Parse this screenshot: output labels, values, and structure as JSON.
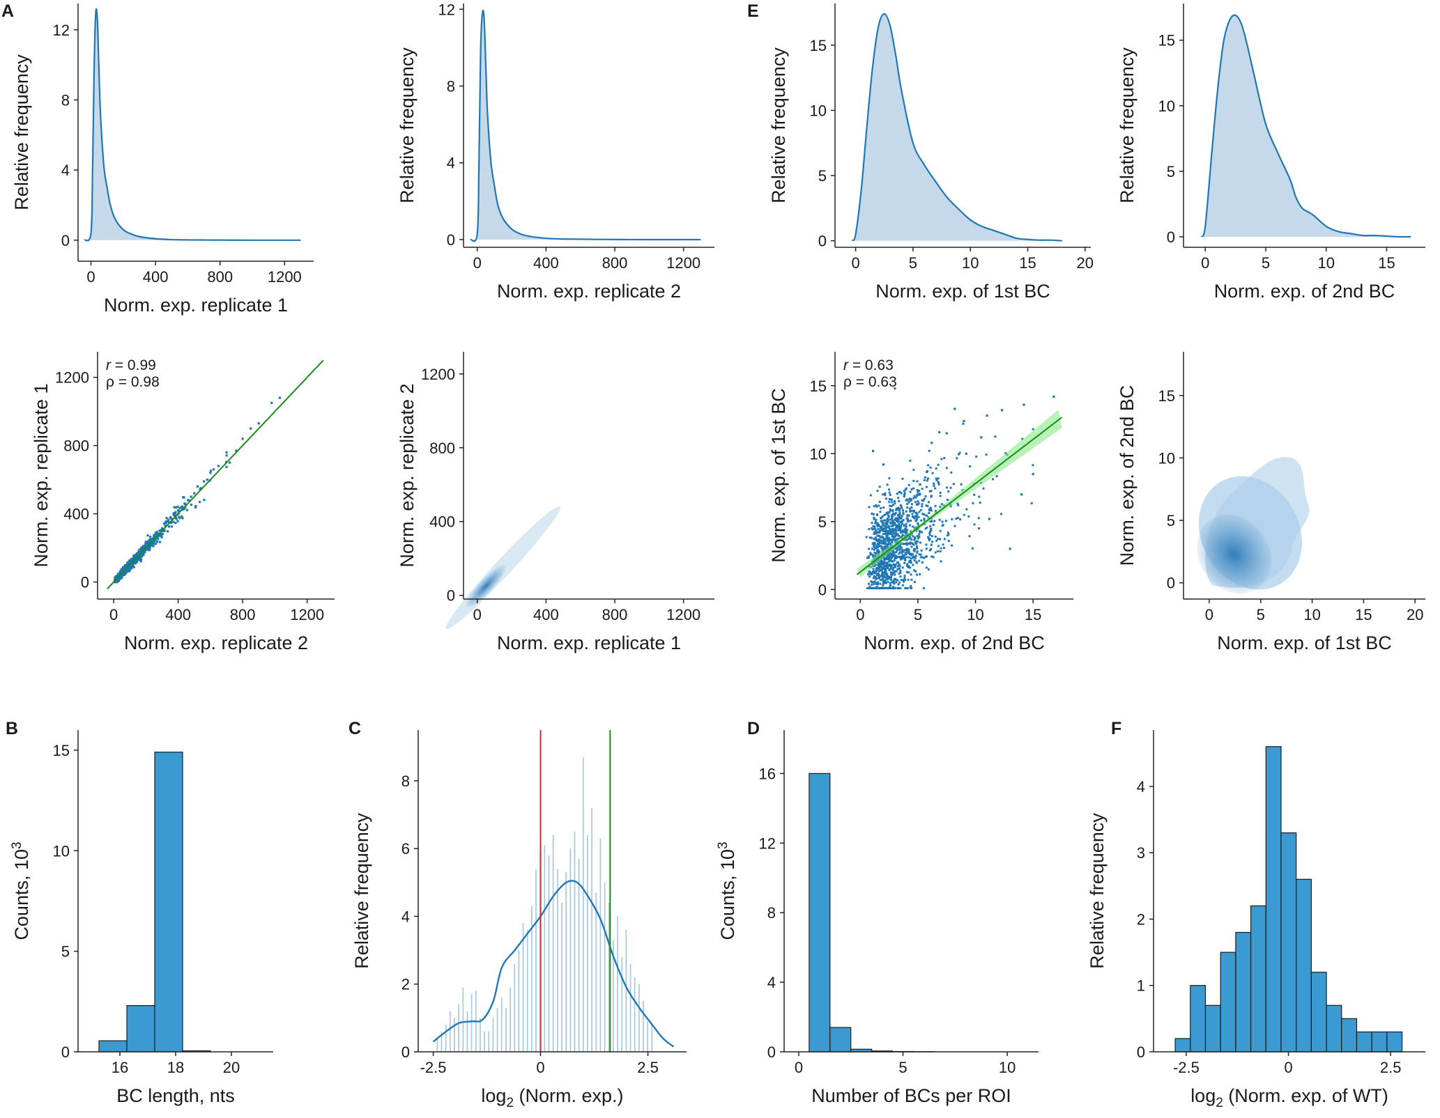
{
  "colors": {
    "blue": "#1f77b4",
    "fill": "#c6d9ea",
    "bar": "#3a9ad1",
    "green": "#1a8a1a",
    "red": "#d62728"
  },
  "panels": {
    "A": "A",
    "B": "B",
    "C": "C",
    "D": "D",
    "E": "E",
    "F": "F"
  },
  "chart_data": [
    {
      "id": "a1",
      "type": "area",
      "title": "",
      "xlabel": "Norm. exp. replicate 1",
      "ylabel": "Relative frequency",
      "xlim": [
        -80,
        1380
      ],
      "ylim": [
        -1.2,
        13.5
      ],
      "xticks": [
        0,
        400,
        800,
        1200
      ],
      "yticks": [
        0,
        4,
        8,
        12
      ],
      "x": [
        -40,
        0,
        10,
        20,
        30,
        40,
        50,
        60,
        80,
        100,
        120,
        150,
        200,
        250,
        300,
        400,
        500,
        700,
        1000,
        1300
      ],
      "y": [
        0,
        0.4,
        4,
        10,
        13,
        12.5,
        9.5,
        7,
        4.2,
        3,
        2,
        1.2,
        0.6,
        0.35,
        0.2,
        0.08,
        0.03,
        0.01,
        0,
        0
      ]
    },
    {
      "id": "a2",
      "type": "area",
      "title": "",
      "xlabel": "Norm. exp. replicate 2",
      "ylabel": "Relative frequency",
      "xlim": [
        -80,
        1380
      ],
      "ylim": [
        -0.4,
        12.3
      ],
      "xticks": [
        0,
        400,
        800,
        1200
      ],
      "yticks": [
        0,
        4,
        8,
        12
      ],
      "x": [
        -40,
        0,
        10,
        20,
        30,
        40,
        50,
        60,
        80,
        100,
        120,
        150,
        200,
        250,
        300,
        400,
        500,
        700,
        1000,
        1300
      ],
      "y": [
        0,
        0.3,
        4,
        10,
        11.8,
        11.5,
        9,
        6.5,
        4,
        2.8,
        1.8,
        1.1,
        0.55,
        0.3,
        0.18,
        0.07,
        0.03,
        0.01,
        0,
        0
      ]
    },
    {
      "id": "e1",
      "type": "area",
      "title": "",
      "xlabel": "Norm. exp. of 1st BC",
      "ylabel": "Relative frequency",
      "xlim": [
        -1.8,
        20.5
      ],
      "ylim": [
        -0.5,
        18.2
      ],
      "xticks": [
        0,
        5,
        10,
        15,
        20
      ],
      "yticks": [
        0,
        5,
        10,
        15
      ],
      "x": [
        -0.3,
        0,
        0.5,
        1,
        1.5,
        2,
        2.5,
        3,
        3.5,
        4,
        5,
        6,
        7,
        8,
        9,
        10,
        11,
        12,
        13,
        14,
        15,
        16,
        17,
        18
      ],
      "y": [
        0,
        0.5,
        4,
        9,
        13.5,
        16.5,
        17.4,
        16.5,
        14.2,
        11.5,
        7.5,
        5.8,
        4.5,
        3.3,
        2.4,
        1.6,
        1.1,
        0.8,
        0.5,
        0.2,
        0.1,
        0.05,
        0.05,
        0
      ]
    },
    {
      "id": "e2",
      "type": "area",
      "title": "",
      "xlabel": "Norm. exp. of 2nd BC",
      "ylabel": "Relative frequency",
      "xlim": [
        -1.8,
        18.2
      ],
      "ylim": [
        -0.8,
        17.8
      ],
      "xticks": [
        0,
        5,
        10,
        15
      ],
      "yticks": [
        0,
        5,
        10,
        15
      ],
      "x": [
        -0.3,
        0,
        0.5,
        1,
        1.5,
        2,
        2.5,
        3,
        3.5,
        4,
        5,
        6,
        7,
        7.5,
        8,
        8.5,
        9,
        10,
        11,
        12,
        13,
        14,
        15,
        16,
        17
      ],
      "y": [
        0,
        0.8,
        6,
        11,
        14.8,
        16.5,
        16.9,
        16.2,
        14.5,
        12.5,
        8.6,
        6.4,
        4.4,
        3,
        2.2,
        1.9,
        1.6,
        0.8,
        0.4,
        0.25,
        0.1,
        0.1,
        0.05,
        0,
        0
      ]
    },
    {
      "id": "a3",
      "type": "scatter",
      "title": "",
      "xlabel": "Norm. exp. replicate 2",
      "ylabel": "Norm. exp. replicate 1",
      "xlim": [
        -100,
        1370
      ],
      "ylim": [
        -100,
        1350
      ],
      "xticks": [
        0,
        400,
        800,
        1200
      ],
      "yticks": [
        0,
        400,
        800,
        1200
      ],
      "fit": {
        "slope": 1.0,
        "intercept": 0,
        "x": [
          -40,
          1300
        ]
      },
      "points": [
        [
          980,
          1050
        ],
        [
          1030,
          1080
        ],
        [
          900,
          930
        ],
        [
          850,
          900
        ],
        [
          800,
          840
        ],
        [
          760,
          770
        ],
        [
          720,
          700
        ],
        [
          700,
          760
        ],
        [
          650,
          680
        ],
        [
          620,
          660
        ],
        [
          600,
          640
        ],
        [
          580,
          600
        ],
        [
          560,
          590
        ],
        [
          540,
          550
        ],
        [
          520,
          560
        ],
        [
          500,
          520
        ],
        [
          480,
          500
        ],
        [
          460,
          480
        ],
        [
          440,
          460
        ],
        [
          420,
          440
        ],
        [
          400,
          420
        ],
        [
          380,
          400
        ],
        [
          360,
          370
        ],
        [
          340,
          360
        ],
        [
          320,
          330
        ],
        [
          300,
          310
        ]
      ],
      "stats": {
        "r": "= 0.99",
        "rho": "ρ = 0.98"
      }
    },
    {
      "id": "a4",
      "type": "heatmap",
      "title": "",
      "xlabel": "Norm. exp. replicate 1",
      "ylabel": "Norm. exp. replicate 2",
      "xlim": [
        -80,
        1380
      ],
      "ylim": [
        -20,
        1320
      ],
      "xticks": [
        0,
        400,
        800,
        1200
      ],
      "yticks": [
        0,
        400,
        800,
        1200
      ]
    },
    {
      "id": "e3",
      "type": "scatter",
      "title": "",
      "xlabel": "Norm. exp. of 2nd BC",
      "ylabel": "Norm. exp. of 1st BC",
      "xlim": [
        -2.2,
        18.5
      ],
      "ylim": [
        -0.7,
        17.5
      ],
      "xticks": [
        0,
        5,
        10,
        15
      ],
      "yticks": [
        0,
        5,
        10,
        15
      ],
      "fit": {
        "slope": 0.65,
        "intercept": 1.3,
        "x": [
          -0.3,
          17.5
        ]
      },
      "points": [
        [
          16.8,
          14.2
        ],
        [
          14.2,
          13.6
        ],
        [
          12.3,
          13.2
        ],
        [
          11.0,
          12.8
        ],
        [
          10.5,
          11.2
        ],
        [
          9.0,
          12.4
        ],
        [
          8.2,
          13.3
        ],
        [
          3.0,
          14.8
        ],
        [
          7.5,
          11.5
        ],
        [
          6.2,
          10.8
        ],
        [
          9.2,
          10.0
        ],
        [
          15.0,
          8.5
        ],
        [
          14.0,
          7.0
        ],
        [
          13.0,
          3.0
        ],
        [
          11.2,
          5.2
        ],
        [
          10.3,
          4.5
        ],
        [
          1.1,
          10.2
        ],
        [
          2.0,
          9.2
        ]
      ],
      "stats": {
        "r": "= 0.63",
        "rho": "ρ = 0.63"
      }
    },
    {
      "id": "e4",
      "type": "heatmap",
      "title": "",
      "xlabel": "Norm. exp. of 1st BC",
      "ylabel": "Norm. exp. of 2nd BC",
      "xlim": [
        -2.5,
        21
      ],
      "ylim": [
        -1.3,
        18.5
      ],
      "xticks": [
        0,
        5,
        10,
        15,
        20
      ],
      "yticks": [
        0,
        5,
        10,
        15
      ]
    },
    {
      "id": "b",
      "type": "bar",
      "title": "",
      "xlabel": "BC length, nts",
      "ylabel": "Counts, 10",
      "ylabel_sup": "3",
      "xlim": [
        14.5,
        21.5
      ],
      "ylim": [
        0,
        16
      ],
      "xticks": [
        16,
        18,
        20
      ],
      "yticks": [
        0,
        5,
        10,
        15
      ],
      "bin_edges": [
        15.25,
        16.25,
        17.25,
        18.25,
        19.25,
        20.25
      ],
      "values": [
        0.55,
        2.3,
        14.9,
        0.05,
        0
      ]
    },
    {
      "id": "c",
      "type": "bar",
      "title": "",
      "xlabel": "log",
      "xlabel_sub": "2",
      "xlabel_rest": " (Norm. exp.)",
      "ylabel": "Relative frequency",
      "xlim": [
        -2.85,
        3.4
      ],
      "ylim": [
        0,
        9.5
      ],
      "xticks": [
        -2.5,
        0,
        2.5
      ],
      "yticks": [
        0,
        2,
        4,
        6,
        8
      ],
      "bin_edges_start": -2.42,
      "bin_width": 0.1,
      "values": [
        0.4,
        0.6,
        0.8,
        1.2,
        1.0,
        1.4,
        1.9,
        1.2,
        1.7,
        1.8,
        1.0,
        0.6,
        0.6,
        1.0,
        1.3,
        1.6,
        1.3,
        1.9,
        2.6,
        3.0,
        3.8,
        3.6,
        4.3,
        5.4,
        5.9,
        6.1,
        5.8,
        6.4,
        5.4,
        4.4,
        5.3,
        6.0,
        6.5,
        5.7,
        8.7,
        6.4,
        7.2,
        4.7,
        6.3,
        5.0,
        4.4,
        3.3,
        4.0,
        2.8,
        3.6,
        2.6,
        2.2,
        2.0,
        1.5,
        0.9,
        0.8
      ],
      "kde_x": [
        -2.5,
        -2.2,
        -1.9,
        -1.6,
        -1.35,
        -1.1,
        -0.9,
        -0.6,
        -0.3,
        0,
        0.3,
        0.6,
        0.85,
        1.1,
        1.4,
        1.7,
        2.0,
        2.3,
        2.6,
        2.85,
        3.1
      ],
      "kde_y": [
        0.3,
        0.6,
        0.85,
        0.9,
        0.95,
        1.5,
        2.5,
        3.0,
        3.5,
        4.0,
        4.6,
        5.0,
        5.0,
        4.6,
        3.9,
        2.8,
        1.9,
        1.3,
        0.8,
        0.4,
        0.15
      ],
      "vlines": [
        0,
        1.62
      ]
    },
    {
      "id": "d",
      "type": "bar",
      "title": "",
      "xlabel": "Number of BCs per ROI",
      "ylabel": "Counts, 10",
      "ylabel_sup": "3",
      "xlim": [
        -0.7,
        11.5
      ],
      "ylim": [
        0,
        18.5
      ],
      "xticks": [
        0,
        5,
        10
      ],
      "yticks": [
        0,
        4,
        8,
        12,
        16
      ],
      "bin_edges": [
        0.5,
        1.5,
        2.5,
        3.5,
        4.5,
        5.5,
        6.5,
        7.5,
        8.5,
        9.5,
        10.5
      ],
      "values": [
        16.0,
        1.4,
        0.15,
        0.05,
        0.02,
        0.01,
        0,
        0,
        0,
        0
      ]
    },
    {
      "id": "f",
      "type": "bar",
      "title": "",
      "xlabel": "log",
      "xlabel_sub": "2",
      "xlabel_rest": " (Norm. exp. of WT)",
      "ylabel": "Relative frequency",
      "xlim": [
        -3.3,
        3.35
      ],
      "ylim": [
        0,
        4.85
      ],
      "xticks": [
        -2.5,
        0,
        2.5
      ],
      "yticks": [
        0,
        1,
        2,
        3,
        4
      ],
      "bin_edges": [
        -2.77,
        -2.4,
        -2.03,
        -1.66,
        -1.29,
        -0.92,
        -0.55,
        -0.18,
        0.19,
        0.56,
        0.93,
        1.3,
        1.67,
        2.04,
        2.41,
        2.78
      ],
      "values": [
        0.2,
        1.0,
        0.7,
        1.5,
        1.8,
        2.2,
        4.6,
        3.3,
        2.6,
        1.2,
        0.7,
        0.5,
        0.3,
        0.3,
        0.3
      ]
    }
  ]
}
